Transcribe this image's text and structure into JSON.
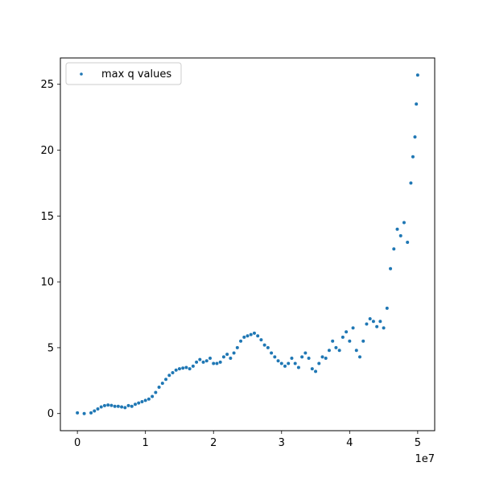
{
  "chart_data": {
    "type": "scatter",
    "series": [
      {
        "name": "max q values",
        "color": "#1f77b4",
        "points": [
          [
            0,
            0.05
          ],
          [
            1000000,
            0.0
          ],
          [
            2000000,
            0.05
          ],
          [
            2500000,
            0.2
          ],
          [
            3000000,
            0.35
          ],
          [
            3500000,
            0.5
          ],
          [
            4000000,
            0.6
          ],
          [
            4500000,
            0.65
          ],
          [
            5000000,
            0.62
          ],
          [
            5500000,
            0.55
          ],
          [
            6000000,
            0.55
          ],
          [
            6500000,
            0.5
          ],
          [
            7000000,
            0.45
          ],
          [
            7500000,
            0.6
          ],
          [
            8000000,
            0.55
          ],
          [
            8500000,
            0.7
          ],
          [
            9000000,
            0.8
          ],
          [
            9500000,
            0.9
          ],
          [
            10000000,
            1.0
          ],
          [
            10500000,
            1.1
          ],
          [
            11000000,
            1.3
          ],
          [
            11500000,
            1.6
          ],
          [
            12000000,
            2.0
          ],
          [
            12500000,
            2.3
          ],
          [
            13000000,
            2.6
          ],
          [
            13500000,
            2.9
          ],
          [
            14000000,
            3.1
          ],
          [
            14500000,
            3.3
          ],
          [
            15000000,
            3.4
          ],
          [
            15500000,
            3.45
          ],
          [
            16000000,
            3.5
          ],
          [
            16500000,
            3.4
          ],
          [
            17000000,
            3.6
          ],
          [
            17500000,
            3.9
          ],
          [
            18000000,
            4.1
          ],
          [
            18500000,
            3.9
          ],
          [
            19000000,
            4.0
          ],
          [
            19500000,
            4.2
          ],
          [
            20000000,
            3.8
          ],
          [
            20500000,
            3.8
          ],
          [
            21000000,
            3.9
          ],
          [
            21500000,
            4.3
          ],
          [
            22000000,
            4.5
          ],
          [
            22500000,
            4.2
          ],
          [
            23000000,
            4.6
          ],
          [
            23500000,
            5.0
          ],
          [
            24000000,
            5.5
          ],
          [
            24500000,
            5.8
          ],
          [
            25000000,
            5.9
          ],
          [
            25500000,
            6.0
          ],
          [
            26000000,
            6.1
          ],
          [
            26500000,
            5.9
          ],
          [
            27000000,
            5.6
          ],
          [
            27500000,
            5.2
          ],
          [
            28000000,
            5.0
          ],
          [
            28500000,
            4.6
          ],
          [
            29000000,
            4.3
          ],
          [
            29500000,
            4.0
          ],
          [
            30000000,
            3.8
          ],
          [
            30500000,
            3.6
          ],
          [
            31000000,
            3.8
          ],
          [
            31500000,
            4.2
          ],
          [
            32000000,
            3.8
          ],
          [
            32500000,
            3.5
          ],
          [
            33000000,
            4.3
          ],
          [
            33500000,
            4.6
          ],
          [
            34000000,
            4.2
          ],
          [
            34500000,
            3.4
          ],
          [
            35000000,
            3.2
          ],
          [
            35500000,
            3.8
          ],
          [
            36000000,
            4.3
          ],
          [
            36500000,
            4.2
          ],
          [
            37000000,
            4.8
          ],
          [
            37500000,
            5.5
          ],
          [
            38000000,
            5.0
          ],
          [
            38500000,
            4.8
          ],
          [
            39000000,
            5.8
          ],
          [
            39500000,
            6.2
          ],
          [
            40000000,
            5.5
          ],
          [
            40500000,
            6.5
          ],
          [
            41000000,
            4.8
          ],
          [
            41500000,
            4.3
          ],
          [
            42000000,
            5.5
          ],
          [
            42500000,
            6.8
          ],
          [
            43000000,
            7.2
          ],
          [
            43500000,
            7.0
          ],
          [
            44000000,
            6.6
          ],
          [
            44500000,
            7.0
          ],
          [
            45000000,
            6.5
          ],
          [
            45500000,
            8.0
          ],
          [
            46000000,
            11.0
          ],
          [
            46500000,
            12.5
          ],
          [
            47000000,
            14.0
          ],
          [
            47500000,
            13.5
          ],
          [
            48000000,
            14.5
          ],
          [
            48500000,
            13.0
          ],
          [
            49000000,
            17.5
          ],
          [
            49300000,
            19.5
          ],
          [
            49600000,
            21.0
          ],
          [
            49800000,
            23.5
          ],
          [
            50000000,
            25.7
          ]
        ]
      }
    ],
    "xlim": [
      -2500000,
      52500000
    ],
    "ylim": [
      -1.3,
      27.0
    ],
    "x_ticks": [
      0,
      10000000,
      20000000,
      30000000,
      40000000,
      50000000
    ],
    "x_tick_labels": [
      "0",
      "1",
      "2",
      "3",
      "4",
      "5"
    ],
    "x_offset_label": "1e7",
    "y_ticks": [
      0,
      5,
      10,
      15,
      20,
      25
    ],
    "y_tick_labels": [
      "0",
      "5",
      "10",
      "15",
      "20",
      "25"
    ],
    "title": "",
    "xlabel": "",
    "ylabel": "",
    "grid": false,
    "legend_position": "upper-left"
  }
}
